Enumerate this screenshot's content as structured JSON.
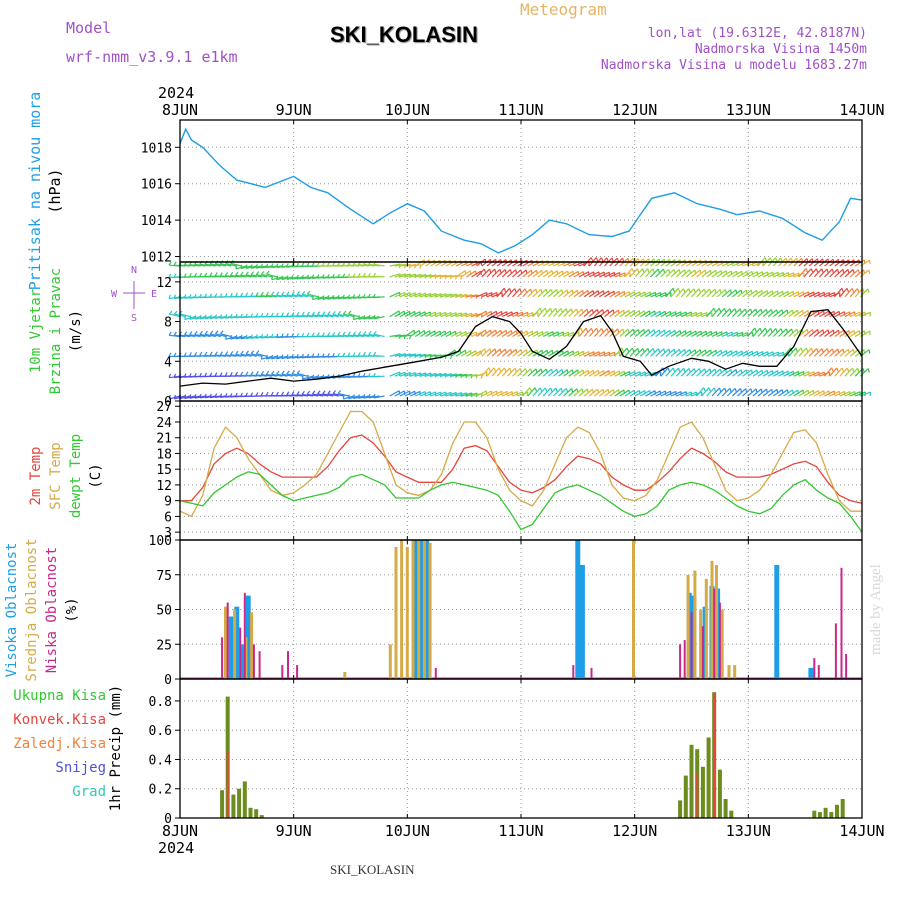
{
  "header": {
    "model_label": "Model",
    "model_name": "wrf-nmm_v3.9.1  e1km",
    "station_title": "SKI_KOLASIN",
    "product": "Meteogram",
    "lonlat": "lon,lat (19.6312E, 42.8187N)",
    "elevation": "Nadmorska Visina 1450m",
    "model_elevation": "Nadmorska Visina u modelu 1683.27m",
    "year_top": "2024",
    "year_bottom": "2024",
    "footer_station": "SKI_KOLASIN",
    "watermark": "made by Angel"
  },
  "colors": {
    "pressure": "#1e9ee6",
    "temp2m": "#e6463c",
    "sfc_temp": "#d6aa46",
    "dewpoint": "#32c832",
    "wind_speed": "#000000",
    "high_cloud": "#1e9ee6",
    "mid_cloud": "#d6aa46",
    "low_cloud": "#c8288c",
    "total_precip": "#32c832",
    "conv_precip": "#e6463c",
    "frozen_precip": "#f0823c",
    "snow": "#5050dc",
    "hail": "#32c8b4"
  },
  "chart_data": [
    {
      "type": "line",
      "panel": "pressure",
      "ylabel_lines": [
        "Pritisak na nivou mora",
        "(hPa)"
      ],
      "x_ticks": [
        "8JUN",
        "9JUN",
        "10JUN",
        "11JUN",
        "12JUN",
        "13JUN",
        "14JUN"
      ],
      "yticks": [
        1012,
        1014,
        1016,
        1018
      ],
      "ylim": [
        1011.7,
        1019.5
      ],
      "x_days": [
        0,
        0.05,
        0.1,
        0.2,
        0.35,
        0.5,
        0.75,
        1.0,
        1.15,
        1.3,
        1.5,
        1.7,
        1.85,
        2.0,
        2.15,
        2.3,
        2.5,
        2.65,
        2.8,
        2.95,
        3.1,
        3.25,
        3.4,
        3.6,
        3.8,
        3.95,
        4.15,
        4.35,
        4.55,
        4.75,
        4.9,
        5.1,
        5.3,
        5.5,
        5.65,
        5.8,
        5.9,
        6.0
      ],
      "series": [
        {
          "values": [
            1018.2,
            1019.0,
            1018.4,
            1018.0,
            1017.0,
            1016.2,
            1015.8,
            1016.4,
            1015.8,
            1015.5,
            1014.6,
            1013.8,
            1014.4,
            1014.9,
            1014.5,
            1013.4,
            1012.9,
            1012.7,
            1012.2,
            1012.6,
            1013.2,
            1014.0,
            1013.8,
            1013.2,
            1013.1,
            1013.4,
            1015.2,
            1015.5,
            1014.9,
            1014.6,
            1014.3,
            1014.5,
            1014.1,
            1013.3,
            1012.9,
            1013.9,
            1015.2,
            1015.1
          ]
        }
      ]
    },
    {
      "type": "line",
      "panel": "wind",
      "ylabel_lines": [
        "10m Vjetar",
        "Brzina i Pravac",
        "(m/s)"
      ],
      "compass": [
        "N",
        "E",
        "S",
        "W"
      ],
      "yticks": [
        0,
        4,
        8,
        12
      ],
      "ylim": [
        0,
        14
      ],
      "x_days": [
        0,
        0.2,
        0.4,
        0.6,
        0.8,
        1.0,
        1.2,
        1.4,
        1.6,
        1.8,
        2.0,
        2.1,
        2.3,
        2.45,
        2.6,
        2.75,
        2.9,
        3.0,
        3.1,
        3.25,
        3.4,
        3.55,
        3.7,
        3.8,
        3.9,
        4.05,
        4.15,
        4.3,
        4.5,
        4.65,
        4.8,
        4.95,
        5.1,
        5.25,
        5.4,
        5.55,
        5.7,
        5.85,
        6.0
      ],
      "series": [
        {
          "values": [
            1.5,
            1.8,
            1.7,
            2.0,
            2.3,
            2.0,
            2.2,
            2.5,
            3.0,
            3.4,
            3.8,
            4.0,
            4.4,
            5.0,
            7.5,
            8.5,
            8.0,
            6.8,
            5.0,
            4.2,
            5.5,
            8.0,
            8.6,
            7.0,
            4.5,
            4.0,
            2.6,
            3.5,
            4.3,
            4.0,
            3.2,
            3.8,
            3.5,
            3.5,
            5.5,
            9.0,
            9.2,
            7.0,
            4.5
          ]
        }
      ],
      "wind_levels_ms": [
        0.5,
        2.5,
        4.5,
        6.5,
        8.5,
        10.5,
        12.5,
        13.6
      ]
    },
    {
      "type": "line",
      "panel": "temperature",
      "ylabel_lines": [
        "2m Temp",
        "SFC Temp",
        "dewpt Temp",
        "(C)"
      ],
      "yticks": [
        3,
        6,
        9,
        12,
        15,
        18,
        21,
        24,
        27
      ],
      "ylim": [
        1.5,
        28
      ],
      "x_days": [
        0,
        0.1,
        0.2,
        0.3,
        0.4,
        0.5,
        0.6,
        0.7,
        0.8,
        0.9,
        1.0,
        1.1,
        1.2,
        1.3,
        1.4,
        1.5,
        1.6,
        1.7,
        1.8,
        1.9,
        2.0,
        2.1,
        2.2,
        2.3,
        2.4,
        2.5,
        2.6,
        2.7,
        2.8,
        2.9,
        3.0,
        3.1,
        3.2,
        3.3,
        3.4,
        3.5,
        3.6,
        3.7,
        3.8,
        3.9,
        4.0,
        4.1,
        4.2,
        4.3,
        4.4,
        4.5,
        4.6,
        4.7,
        4.8,
        4.9,
        5.0,
        5.1,
        5.2,
        5.3,
        5.4,
        5.5,
        5.6,
        5.7,
        5.8,
        5.9,
        6.0
      ],
      "series": [
        {
          "name": "2m Temp",
          "values": [
            9,
            9,
            11.5,
            16,
            18,
            19,
            18,
            16,
            14.5,
            13.5,
            13.5,
            13.5,
            13.5,
            15.5,
            18.5,
            21,
            21.5,
            20,
            17.5,
            14.5,
            13.5,
            12.5,
            12.5,
            12.5,
            15,
            19,
            19.5,
            18.5,
            15.5,
            12.5,
            11,
            10.5,
            11.5,
            13,
            15.5,
            17.5,
            17,
            16,
            13.5,
            12,
            11,
            11,
            12.5,
            14.5,
            17,
            19,
            18,
            16.5,
            14.5,
            13.5,
            13.5,
            13.5,
            14,
            15,
            16,
            16.5,
            15.5,
            12.5,
            10,
            9,
            8.5
          ]
        },
        {
          "name": "SFC Temp",
          "values": [
            7,
            6,
            10,
            19,
            23,
            21,
            17,
            14,
            11,
            10,
            10.5,
            12,
            14,
            18,
            22,
            26,
            26,
            24,
            18,
            12,
            10.5,
            10,
            11,
            14,
            20,
            24,
            24,
            21,
            15,
            11,
            9,
            8,
            11,
            16,
            21,
            23,
            22,
            18,
            12,
            9.5,
            9,
            10,
            13,
            18,
            23,
            24,
            21,
            16,
            11,
            9,
            9.5,
            11,
            14,
            18,
            22,
            22.5,
            20,
            14,
            9,
            7,
            7
          ]
        },
        {
          "name": "dewpt Temp",
          "values": [
            9,
            8.5,
            8,
            10.5,
            12,
            13.5,
            14.5,
            14,
            12,
            10,
            9,
            9.5,
            10,
            10.5,
            11.5,
            13.5,
            14,
            13,
            12,
            9.5,
            9.5,
            9.5,
            11,
            12,
            12.5,
            12,
            11.5,
            11,
            10,
            7,
            3.5,
            4.5,
            7.5,
            10.5,
            11.5,
            12,
            11,
            10,
            8.5,
            7,
            6,
            6.5,
            8,
            11,
            12,
            12.5,
            12,
            11,
            9.5,
            8,
            7,
            6.5,
            7.5,
            10,
            12,
            13,
            11,
            9.5,
            8.5,
            6,
            3
          ]
        }
      ]
    },
    {
      "type": "bar",
      "panel": "cloud",
      "ylabel_lines": [
        "Visoka Oblacnost",
        "Srednja Oblacnost",
        "Niska Oblacnost",
        "(%)"
      ],
      "yticks": [
        0,
        25,
        50,
        75,
        100
      ],
      "ylim": [
        0,
        100
      ],
      "series": [
        {
          "name": "Visoka Oblacnost",
          "x_days": [
            0.45,
            0.5,
            0.55,
            0.6,
            2.07,
            2.12,
            2.17,
            3.5,
            3.54,
            4.48,
            4.52,
            4.62,
            4.68,
            4.73,
            5.25,
            5.55
          ],
          "values": [
            45,
            52,
            25,
            60,
            100,
            100,
            100,
            100,
            82,
            62,
            60,
            52,
            67,
            65,
            82,
            8
          ]
        },
        {
          "name": "Srednja Oblacnost",
          "x_days": [
            0.4,
            0.48,
            0.58,
            0.63,
            1.45,
            1.85,
            1.9,
            1.95,
            2.0,
            2.05,
            2.1,
            2.15,
            2.2,
            3.99,
            4.47,
            4.53,
            4.58,
            4.63,
            4.68,
            4.72,
            4.77,
            4.83,
            4.88
          ],
          "values": [
            52,
            50,
            30,
            48,
            5,
            25,
            95,
            100,
            95,
            100,
            100,
            100,
            98,
            100,
            75,
            78,
            50,
            72,
            85,
            82,
            50,
            10,
            10
          ]
        },
        {
          "name": "Niska Oblacnost",
          "x_days": [
            0.37,
            0.42,
            0.53,
            0.57,
            0.65,
            0.7,
            0.9,
            0.95,
            1.03,
            2.25,
            3.46,
            3.62,
            4.4,
            4.44,
            4.5,
            4.6,
            4.7,
            4.75,
            5.58,
            5.62,
            5.77,
            5.82,
            5.86
          ],
          "values": [
            30,
            55,
            37,
            62,
            25,
            20,
            10,
            20,
            10,
            8,
            10,
            8,
            25,
            28,
            48,
            38,
            65,
            55,
            15,
            10,
            40,
            80,
            18
          ]
        }
      ]
    },
    {
      "type": "bar",
      "panel": "precipitation",
      "ylabel_lines": [
        "1hr Precip (mm)"
      ],
      "legend": [
        "Ukupna Kisa",
        "Konvek.Kisa",
        "Zaledj.Kisa",
        "Snijeg",
        "Grad"
      ],
      "yticks": [
        0,
        0.2,
        0.4,
        0.6,
        0.8
      ],
      "ylim": [
        0,
        0.95
      ],
      "series": [
        {
          "name": "Ukupna Kisa",
          "x_days": [
            0.37,
            0.42,
            0.47,
            0.52,
            0.57,
            0.62,
            0.67,
            0.72,
            4.4,
            4.45,
            4.5,
            4.55,
            4.6,
            4.65,
            4.7,
            4.75,
            4.8,
            4.85,
            5.58,
            5.63,
            5.68,
            5.73,
            5.78,
            5.83
          ],
          "values": [
            0.19,
            0.83,
            0.16,
            0.2,
            0.25,
            0.07,
            0.06,
            0.02,
            0.12,
            0.29,
            0.5,
            0.47,
            0.35,
            0.55,
            0.86,
            0.33,
            0.13,
            0.05,
            0.05,
            0.04,
            0.07,
            0.04,
            0.09,
            0.13
          ]
        },
        {
          "name": "Konvek.Kisa",
          "x_days": [
            0.42,
            4.55,
            4.7
          ],
          "values": [
            0.45,
            0.3,
            0.85
          ]
        }
      ]
    }
  ]
}
